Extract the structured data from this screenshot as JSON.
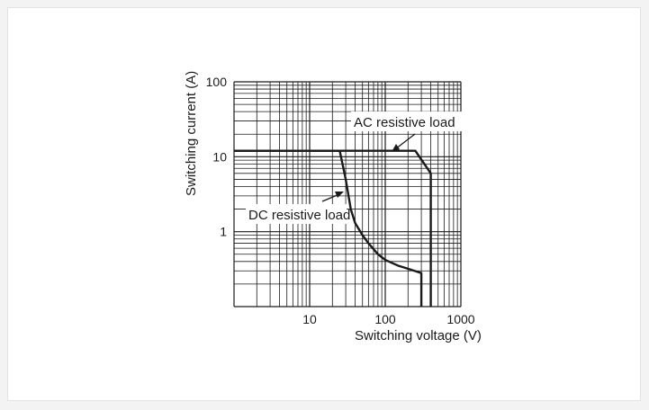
{
  "chart_data": {
    "type": "line",
    "title": "",
    "xlabel": "Switching voltage (V)",
    "ylabel": "Switching current (A)",
    "x_scale": "log",
    "y_scale": "log",
    "xlim": [
      1,
      1000
    ],
    "ylim": [
      0.1,
      100
    ],
    "grid": true,
    "x_tick_labels": [
      {
        "value": 10,
        "label": "10"
      },
      {
        "value": 100,
        "label": "100"
      },
      {
        "value": 1000,
        "label": "1000"
      }
    ],
    "y_tick_labels": [
      {
        "value": 1,
        "label": "1"
      },
      {
        "value": 10,
        "label": "10"
      },
      {
        "value": 100,
        "label": "100"
      }
    ],
    "series": [
      {
        "name": "AC resistive load",
        "x": [
          1,
          250,
          400,
          400
        ],
        "y": [
          12,
          12,
          6,
          0.1
        ]
      },
      {
        "name": "DC resistive load",
        "x": [
          1,
          25,
          30,
          35,
          40,
          50,
          60,
          80,
          100,
          150,
          200,
          300,
          300
        ],
        "y": [
          12,
          12,
          5,
          2,
          1.3,
          0.9,
          0.7,
          0.5,
          0.42,
          0.35,
          0.32,
          0.28,
          0.1
        ]
      }
    ],
    "annotations": [
      {
        "text": "AC resistive load",
        "series": "AC resistive load"
      },
      {
        "text": "DC resistive load",
        "series": "DC resistive load"
      }
    ]
  }
}
